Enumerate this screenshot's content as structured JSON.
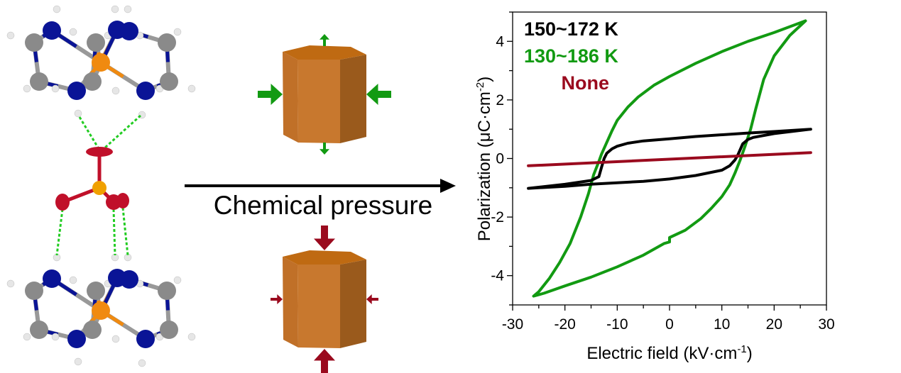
{
  "figure": {
    "arrow_label": "Chemical pressure",
    "colors": {
      "green": "#129a12",
      "red": "#9a0a1e",
      "prism_top": "#bf6a12",
      "prism_left": "#c07028",
      "prism_front": "#c8782e",
      "prism_right": "#9a5a1c",
      "nitrogen": "#0a1496",
      "carbon": "#8a8a8a",
      "hydrogen": "#e6e6e6",
      "phosphorus": "#f08a10",
      "oxygen": "#c0102a",
      "sulfur": "#f0a000",
      "hbond": "#22cc22"
    }
  },
  "chart_data": {
    "type": "line",
    "xlabel": "Electric field (kV·cm",
    "xlabel_sup": "-1",
    "xlabel_end": ")",
    "ylabel": "Polarization (μC·cm",
    "ylabel_sup": "-2",
    "ylabel_end": ")",
    "xlim": [
      -30,
      30
    ],
    "ylim": [
      -5,
      5
    ],
    "xticks": [
      -30,
      -20,
      -10,
      0,
      10,
      20,
      30
    ],
    "xtick_labels": [
      "-30",
      "-20",
      "-10",
      "0",
      "10",
      "20",
      "30"
    ],
    "yticks": [
      -4,
      -2,
      0,
      2,
      4
    ],
    "ytick_labels": [
      "-4",
      "-2",
      "0",
      "2",
      "4"
    ],
    "grid": false,
    "legend_placement": "top-left",
    "series": [
      {
        "name": "150~172 K",
        "color": "#000000",
        "x": [
          27,
          20,
          15,
          5,
          0,
          -5,
          -8,
          -10,
          -11,
          -12,
          -12.5,
          -13,
          -13.5,
          -15,
          -20,
          -27,
          -20,
          -15,
          -5,
          0,
          5,
          10,
          11.5,
          12.5,
          13,
          13.5,
          14,
          15,
          16,
          20,
          27
        ],
        "y": [
          1.0,
          0.92,
          0.87,
          0.75,
          0.67,
          0.6,
          0.52,
          0.42,
          0.33,
          0.18,
          0.0,
          -0.3,
          -0.62,
          -0.75,
          -0.88,
          -1.02,
          -0.95,
          -0.88,
          -0.78,
          -0.7,
          -0.58,
          -0.4,
          -0.25,
          -0.05,
          0.1,
          0.3,
          0.5,
          0.65,
          0.72,
          0.85,
          1.0
        ]
      },
      {
        "name": "130~186 K",
        "color": "#129a12",
        "x": [
          26,
          20,
          15,
          10,
          5,
          0,
          -3,
          -6,
          -8,
          -10,
          -11,
          -12,
          -13,
          -13.5,
          -14.5,
          -15.5,
          -17,
          -19,
          -21,
          -23,
          -25,
          -26,
          -24,
          -20,
          -15,
          -10,
          -5,
          -1,
          0,
          0,
          3,
          6,
          8,
          10,
          11.5,
          12.5,
          13.5,
          14.5,
          15.5,
          16.5,
          18,
          20,
          23,
          26
        ],
        "y": [
          4.7,
          4.3,
          4.0,
          3.65,
          3.25,
          2.8,
          2.5,
          2.1,
          1.75,
          1.3,
          0.95,
          0.55,
          0.15,
          -0.1,
          -0.55,
          -1.2,
          -2.0,
          -2.9,
          -3.55,
          -4.1,
          -4.55,
          -4.7,
          -4.6,
          -4.35,
          -4.05,
          -3.7,
          -3.3,
          -2.9,
          -2.85,
          -2.7,
          -2.45,
          -2.05,
          -1.7,
          -1.3,
          -0.9,
          -0.5,
          -0.05,
          0.45,
          1.0,
          1.7,
          2.7,
          3.5,
          4.2,
          4.7
        ]
      },
      {
        "name": "None",
        "color": "#9a0a1e",
        "x": [
          -27,
          27
        ],
        "y": [
          -0.25,
          0.2
        ]
      }
    ]
  }
}
